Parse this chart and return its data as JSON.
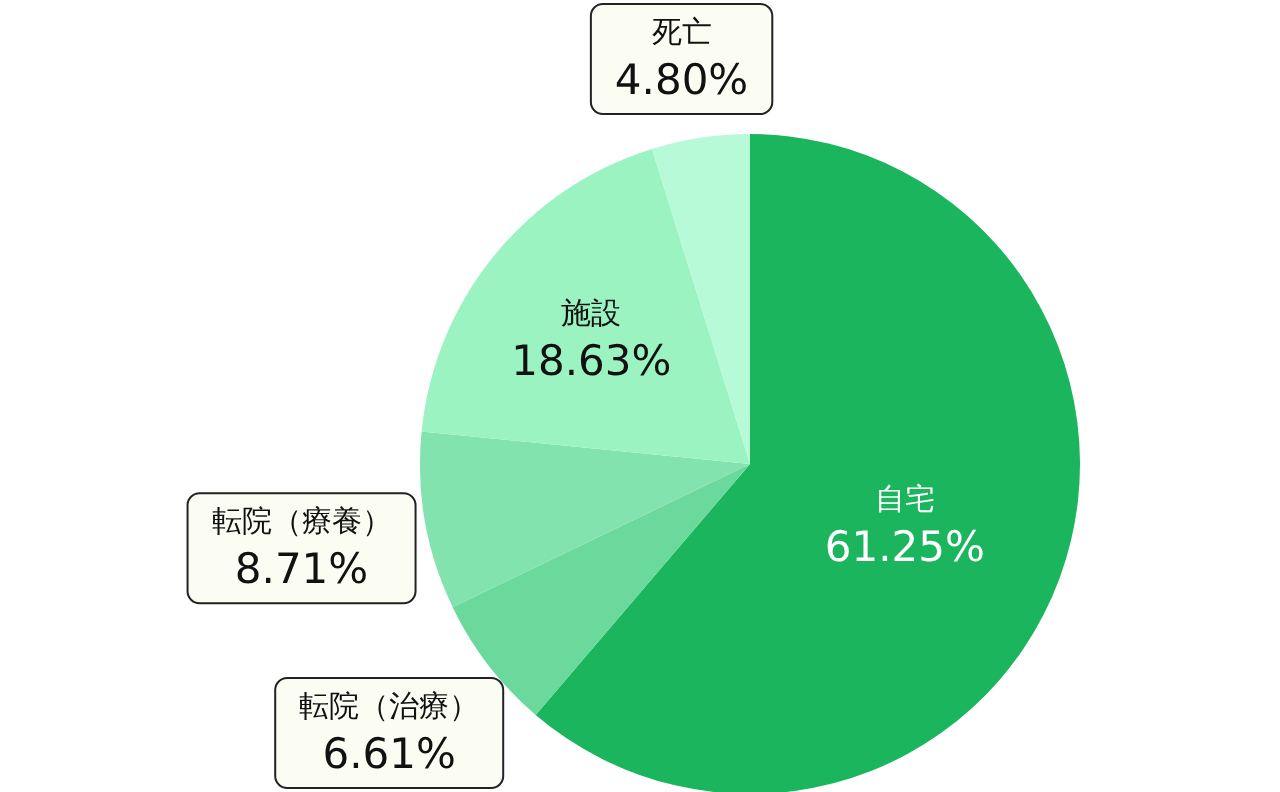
{
  "chart_data": {
    "type": "pie",
    "categories": [
      "自宅",
      "転院（治療）",
      "転院（療養）",
      "施設",
      "死亡"
    ],
    "values": [
      61.25,
      6.61,
      8.71,
      18.63,
      4.8
    ],
    "colors": [
      "#1bb55e",
      "#6bd99b",
      "#82e3ae",
      "#9bf3c2",
      "#b6fad8"
    ],
    "value_labels": [
      "61.25%",
      "6.61%",
      "8.71%",
      "18.63%",
      "4.80%"
    ]
  }
}
